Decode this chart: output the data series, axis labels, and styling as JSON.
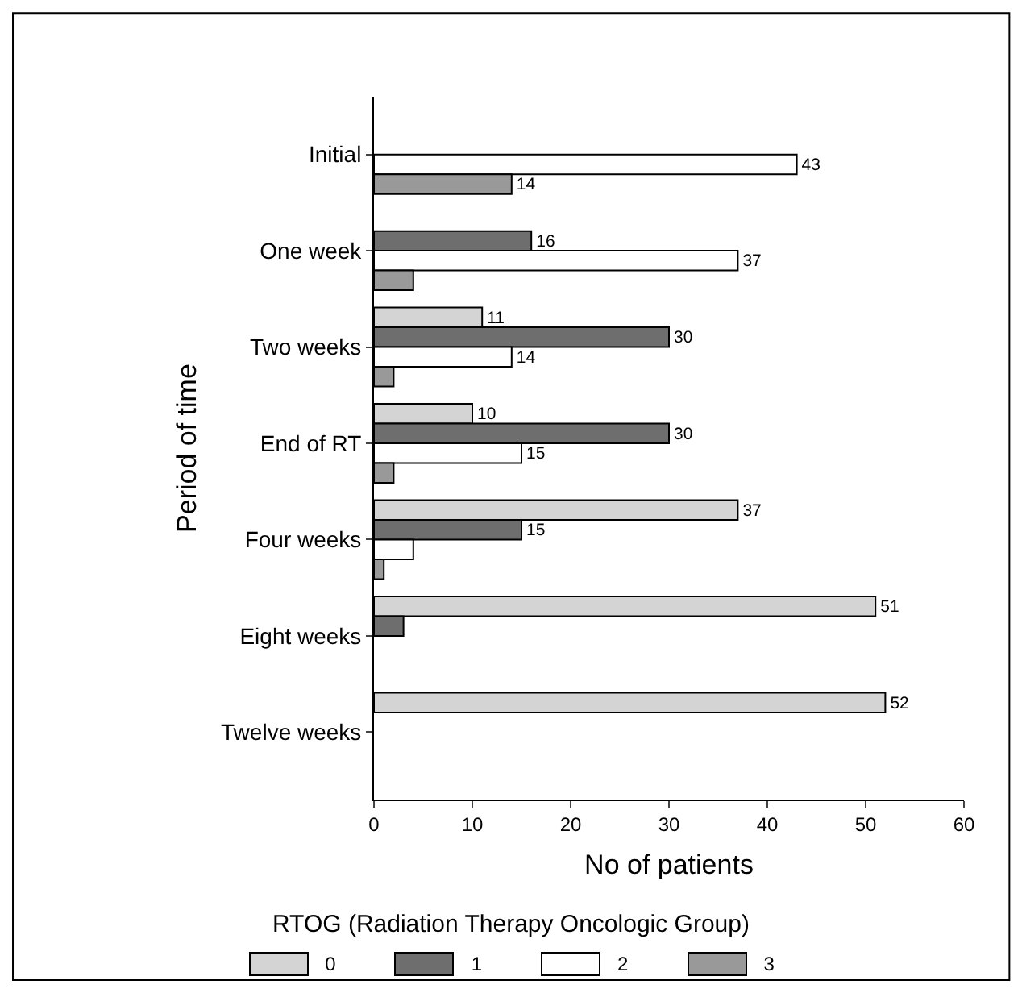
{
  "chart_data": {
    "type": "bar",
    "orientation": "horizontal",
    "xlabel": "No of patients",
    "ylabel": "Period of time",
    "legend_title": "RTOG  (Radiation Therapy Oncologic Group)",
    "legend": "bottom",
    "grid": false,
    "categories": [
      "Initial",
      "One week",
      "Two weeks",
      "End of RT",
      "Four weeks",
      "Eight weeks",
      "Twelve weeks"
    ],
    "xlim": [
      0,
      60
    ],
    "xticks": [
      0,
      10,
      20,
      30,
      40,
      50,
      60
    ],
    "series": [
      {
        "name": "0",
        "color": "#d4d4d4",
        "values": [
          null,
          null,
          11,
          10,
          37,
          51,
          52
        ],
        "value_labels": [
          null,
          null,
          "11",
          "10",
          "37",
          "51",
          "52"
        ]
      },
      {
        "name": "1",
        "color": "#6e6e6e",
        "values": [
          null,
          16,
          30,
          30,
          15,
          3,
          null
        ],
        "value_labels": [
          null,
          "16",
          "30",
          "30",
          "15",
          null,
          null
        ]
      },
      {
        "name": "2",
        "color": "#ffffff",
        "values": [
          43,
          37,
          14,
          15,
          4,
          null,
          null
        ],
        "value_labels": [
          "43",
          "37",
          "14",
          "15",
          null,
          null,
          null
        ]
      },
      {
        "name": "3",
        "color": "#999999",
        "values": [
          14,
          4,
          2,
          2,
          1,
          null,
          null
        ],
        "value_labels": [
          "14",
          null,
          null,
          null,
          null,
          null,
          null
        ]
      }
    ]
  }
}
